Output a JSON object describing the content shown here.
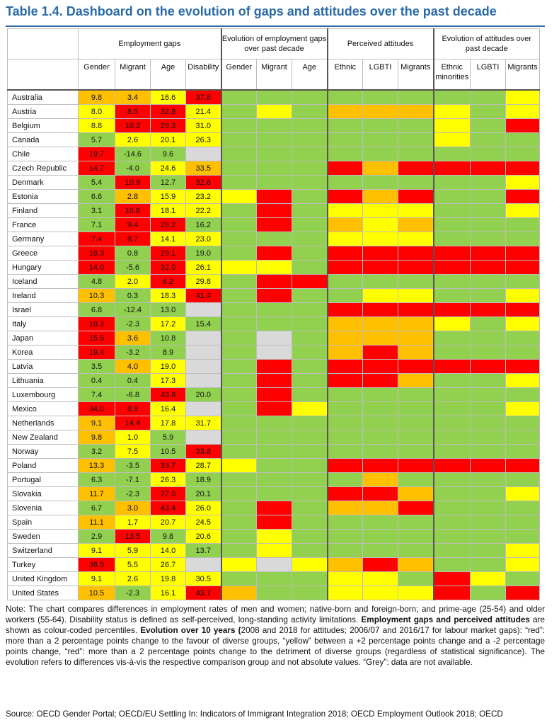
{
  "title": "Table 1.4. Dashboard on the evolution of gaps and attitudes over the past decade",
  "colors": {
    "R": "#ff0000",
    "O": "#ffc000",
    "Y": "#ffff00",
    "G": "#92d050",
    "X": "#d9d9d9",
    "W": "#ffffff",
    "title": "#2a6aa8"
  },
  "groups": [
    {
      "label": "Employment gaps",
      "span": 4
    },
    {
      "label": "Evolution of employment gaps over past decade",
      "span": 3
    },
    {
      "label": "Perceived attitudes",
      "span": 3
    },
    {
      "label": "Evolution of attitudes over past decade",
      "span": 3
    }
  ],
  "columns": [
    "Gender",
    "Migrant",
    "Age",
    "Disability",
    "Gender",
    "Migrant",
    "Age",
    "Ethnic",
    "LGBTI",
    "Migrants",
    "Ethnic minorities",
    "LGBTI",
    "Migrants"
  ],
  "rows": [
    {
      "country": "Australia",
      "values": [
        "9.8",
        "3.4",
        "16.6",
        "37.8"
      ],
      "colors": [
        "O",
        "O",
        "Y",
        "R"
      ],
      "evo": [
        "G",
        "G",
        "G"
      ],
      "att": [
        "G",
        "G",
        "G"
      ],
      "evatt": [
        "G",
        "G",
        "Y"
      ]
    },
    {
      "country": "Austria",
      "values": [
        "8.0",
        "8.5",
        "32.8",
        "21.4"
      ],
      "colors": [
        "Y",
        "R",
        "R",
        "Y"
      ],
      "evo": [
        "G",
        "Y",
        "G"
      ],
      "att": [
        "O",
        "O",
        "O"
      ],
      "evatt": [
        "Y",
        "G",
        "Y"
      ]
    },
    {
      "country": "Belgium",
      "values": [
        "8.8",
        "10.2",
        "29.3",
        "31.0"
      ],
      "colors": [
        "Y",
        "R",
        "R",
        "Y"
      ],
      "evo": [
        "G",
        "G",
        "G"
      ],
      "att": [
        "G",
        "G",
        "G"
      ],
      "evatt": [
        "Y",
        "G",
        "R"
      ]
    },
    {
      "country": "Canada",
      "values": [
        "5.7",
        "2.6",
        "20.1",
        "26.3"
      ],
      "colors": [
        "G",
        "Y",
        "Y",
        "Y"
      ],
      "evo": [
        "G",
        "G",
        "G"
      ],
      "att": [
        "G",
        "G",
        "G"
      ],
      "evatt": [
        "Y",
        "G",
        "G"
      ]
    },
    {
      "country": "Chile",
      "values": [
        "19.7",
        "-14.6",
        "9.6",
        ""
      ],
      "colors": [
        "R",
        "G",
        "G",
        "X"
      ],
      "evo": [
        "G",
        "G",
        "G"
      ],
      "att": [
        "G",
        "G",
        "G"
      ],
      "evatt": [
        "G",
        "G",
        "G"
      ]
    },
    {
      "country": "Czech Republic",
      "values": [
        "14.7",
        "-4.0",
        "24.6",
        "33.5"
      ],
      "colors": [
        "R",
        "G",
        "Y",
        "O"
      ],
      "evo": [
        "G",
        "G",
        "G"
      ],
      "att": [
        "R",
        "O",
        "R"
      ],
      "evatt": [
        "R",
        "R",
        "R"
      ]
    },
    {
      "country": "Denmark",
      "values": [
        "5.4",
        "10.9",
        "12.7",
        "32.6"
      ],
      "colors": [
        "G",
        "R",
        "G",
        "R"
      ],
      "evo": [
        "G",
        "G",
        "G"
      ],
      "att": [
        "G",
        "G",
        "G"
      ],
      "evatt": [
        "G",
        "G",
        "Y"
      ]
    },
    {
      "country": "Estonia",
      "values": [
        "6.6",
        "2.8",
        "15.9",
        "23.2"
      ],
      "colors": [
        "G",
        "O",
        "Y",
        "Y"
      ],
      "evo": [
        "Y",
        "R",
        "G"
      ],
      "att": [
        "R",
        "O",
        "R"
      ],
      "evatt": [
        "G",
        "G",
        "R"
      ]
    },
    {
      "country": "Finland",
      "values": [
        "3.1",
        "10.8",
        "18.1",
        "22.2"
      ],
      "colors": [
        "G",
        "R",
        "Y",
        "Y"
      ],
      "evo": [
        "G",
        "R",
        "G"
      ],
      "att": [
        "Y",
        "Y",
        "Y"
      ],
      "evatt": [
        "G",
        "G",
        "Y"
      ]
    },
    {
      "country": "France",
      "values": [
        "7.1",
        "9.4",
        "29.2",
        "16.2"
      ],
      "colors": [
        "G",
        "R",
        "R",
        "G"
      ],
      "evo": [
        "G",
        "R",
        "G"
      ],
      "att": [
        "O",
        "Y",
        "O"
      ],
      "evatt": [
        "G",
        "G",
        "G"
      ]
    },
    {
      "country": "Germany",
      "values": [
        "7.4",
        "8.7",
        "14.1",
        "23.0"
      ],
      "colors": [
        "R",
        "R",
        "Y",
        "Y"
      ],
      "evo": [
        "G",
        "G",
        "G"
      ],
      "att": [
        "Y",
        "Y",
        "Y"
      ],
      "evatt": [
        "G",
        "G",
        "G"
      ]
    },
    {
      "country": "Greece",
      "values": [
        "18.3",
        "0.8",
        "29.1",
        "19.0"
      ],
      "colors": [
        "R",
        "G",
        "R",
        "G"
      ],
      "evo": [
        "G",
        "R",
        "G"
      ],
      "att": [
        "R",
        "R",
        "R"
      ],
      "evatt": [
        "R",
        "R",
        "R"
      ]
    },
    {
      "country": "Hungary",
      "values": [
        "14.0",
        "-5.6",
        "32.0",
        "26.1"
      ],
      "colors": [
        "R",
        "G",
        "R",
        "Y"
      ],
      "evo": [
        "Y",
        "Y",
        "G"
      ],
      "att": [
        "R",
        "R",
        "R"
      ],
      "evatt": [
        "R",
        "R",
        "R"
      ]
    },
    {
      "country": "Iceland",
      "values": [
        "4.8",
        "2.0",
        "6.2",
        "29.8"
      ],
      "colors": [
        "G",
        "Y",
        "R",
        "Y"
      ],
      "evo": [
        "G",
        "R",
        "R"
      ],
      "att": [
        "G",
        "G",
        "G"
      ],
      "evatt": [
        "G",
        "G",
        "G"
      ]
    },
    {
      "country": "Ireland",
      "values": [
        "10.3",
        "0.3",
        "18.3",
        "41.4"
      ],
      "colors": [
        "O",
        "G",
        "Y",
        "R"
      ],
      "evo": [
        "G",
        "R",
        "G"
      ],
      "att": [
        "G",
        "Y",
        "Y"
      ],
      "evatt": [
        "G",
        "G",
        "Y"
      ]
    },
    {
      "country": "Israel",
      "values": [
        "6.8",
        "-12.4",
        "13.0",
        ""
      ],
      "colors": [
        "G",
        "G",
        "G",
        "X"
      ],
      "evo": [
        "G",
        "G",
        "G"
      ],
      "att": [
        "R",
        "R",
        "R"
      ],
      "evatt": [
        "R",
        "R",
        "R"
      ]
    },
    {
      "country": "Italy",
      "values": [
        "18.2",
        "-2.3",
        "17.2",
        "15.4"
      ],
      "colors": [
        "R",
        "G",
        "Y",
        "G"
      ],
      "evo": [
        "G",
        "G",
        "G"
      ],
      "att": [
        "O",
        "O",
        "O"
      ],
      "evatt": [
        "Y",
        "G",
        "Y"
      ]
    },
    {
      "country": "Japan",
      "values": [
        "15.5",
        "3.6",
        "10.8",
        ""
      ],
      "colors": [
        "R",
        "O",
        "G",
        "X"
      ],
      "evo": [
        "G",
        "X",
        "G"
      ],
      "att": [
        "O",
        "O",
        "O"
      ],
      "evatt": [
        "G",
        "G",
        "G"
      ]
    },
    {
      "country": "Korea",
      "values": [
        "19.4",
        "-3.2",
        "8.9",
        ""
      ],
      "colors": [
        "R",
        "G",
        "G",
        "X"
      ],
      "evo": [
        "G",
        "X",
        "G"
      ],
      "att": [
        "O",
        "R",
        "O"
      ],
      "evatt": [
        "G",
        "G",
        "G"
      ]
    },
    {
      "country": "Latvia",
      "values": [
        "3.5",
        "4.0",
        "19.0",
        ""
      ],
      "colors": [
        "G",
        "O",
        "Y",
        "X"
      ],
      "evo": [
        "G",
        "R",
        "G"
      ],
      "att": [
        "R",
        "R",
        "R"
      ],
      "evatt": [
        "R",
        "R",
        "R"
      ]
    },
    {
      "country": "Lithuania",
      "values": [
        "0.4",
        "0.4",
        "17.3",
        ""
      ],
      "colors": [
        "G",
        "G",
        "Y",
        "X"
      ],
      "evo": [
        "G",
        "R",
        "G"
      ],
      "att": [
        "R",
        "R",
        "O"
      ],
      "evatt": [
        "G",
        "G",
        "Y"
      ]
    },
    {
      "country": "Luxembourg",
      "values": [
        "7.4",
        "-6.8",
        "43.8",
        "20.0"
      ],
      "colors": [
        "G",
        "G",
        "R",
        "G"
      ],
      "evo": [
        "G",
        "R",
        "G"
      ],
      "att": [
        "G",
        "G",
        "G"
      ],
      "evatt": [
        "G",
        "G",
        "G"
      ]
    },
    {
      "country": "Mexico",
      "values": [
        "34.0",
        "8.9",
        "16.4",
        ""
      ],
      "colors": [
        "R",
        "R",
        "Y",
        "X"
      ],
      "evo": [
        "G",
        "R",
        "Y"
      ],
      "att": [
        "G",
        "G",
        "G"
      ],
      "evatt": [
        "G",
        "G",
        "Y"
      ]
    },
    {
      "country": "Netherlands",
      "values": [
        "9.1",
        "14.4",
        "17.8",
        "31.7"
      ],
      "colors": [
        "O",
        "R",
        "Y",
        "Y"
      ],
      "evo": [
        "G",
        "G",
        "G"
      ],
      "att": [
        "G",
        "G",
        "G"
      ],
      "evatt": [
        "G",
        "G",
        "G"
      ]
    },
    {
      "country": "New Zealand",
      "values": [
        "9.8",
        "1.0",
        "5.9",
        ""
      ],
      "colors": [
        "O",
        "Y",
        "G",
        "X"
      ],
      "evo": [
        "G",
        "G",
        "G"
      ],
      "att": [
        "G",
        "G",
        "G"
      ],
      "evatt": [
        "G",
        "G",
        "G"
      ]
    },
    {
      "country": "Norway",
      "values": [
        "3.2",
        "7.5",
        "10.5",
        "33.8"
      ],
      "colors": [
        "G",
        "Y",
        "G",
        "R"
      ],
      "evo": [
        "G",
        "G",
        "G"
      ],
      "att": [
        "G",
        "G",
        "G"
      ],
      "evatt": [
        "G",
        "G",
        "G"
      ]
    },
    {
      "country": "Poland",
      "values": [
        "13.3",
        "-3.5",
        "33.7",
        "28.7"
      ],
      "colors": [
        "O",
        "G",
        "R",
        "Y"
      ],
      "evo": [
        "Y",
        "G",
        "G"
      ],
      "att": [
        "R",
        "R",
        "R"
      ],
      "evatt": [
        "R",
        "R",
        "R"
      ]
    },
    {
      "country": "Portugal",
      "values": [
        "6.3",
        "-7.1",
        "26.3",
        "18.9"
      ],
      "colors": [
        "G",
        "G",
        "Y",
        "G"
      ],
      "evo": [
        "G",
        "G",
        "G"
      ],
      "att": [
        "G",
        "O",
        "G"
      ],
      "evatt": [
        "G",
        "G",
        "G"
      ]
    },
    {
      "country": "Slovakia",
      "values": [
        "11.7",
        "-2.3",
        "27.0",
        "20.1"
      ],
      "colors": [
        "O",
        "G",
        "R",
        "G"
      ],
      "evo": [
        "G",
        "G",
        "G"
      ],
      "att": [
        "R",
        "R",
        "O"
      ],
      "evatt": [
        "G",
        "G",
        "Y"
      ]
    },
    {
      "country": "Slovenia",
      "values": [
        "6.7",
        "3.0",
        "43.4",
        "26.0"
      ],
      "colors": [
        "G",
        "O",
        "R",
        "Y"
      ],
      "evo": [
        "G",
        "R",
        "G"
      ],
      "att": [
        "O",
        "O",
        "R"
      ],
      "evatt": [
        "G",
        "G",
        "G"
      ]
    },
    {
      "country": "Spain",
      "values": [
        "11.1",
        "1.7",
        "20.7",
        "24.5"
      ],
      "colors": [
        "O",
        "Y",
        "Y",
        "Y"
      ],
      "evo": [
        "G",
        "R",
        "G"
      ],
      "att": [
        "G",
        "G",
        "G"
      ],
      "evatt": [
        "G",
        "G",
        "G"
      ]
    },
    {
      "country": "Sweden",
      "values": [
        "2.9",
        "13.5",
        "9.8",
        "20.6"
      ],
      "colors": [
        "G",
        "R",
        "G",
        "Y"
      ],
      "evo": [
        "G",
        "Y",
        "G"
      ],
      "att": [
        "G",
        "G",
        "G"
      ],
      "evatt": [
        "G",
        "G",
        "G"
      ]
    },
    {
      "country": "Switzerland",
      "values": [
        "9.1",
        "5.9",
        "14.0",
        "13.7"
      ],
      "colors": [
        "Y",
        "Y",
        "Y",
        "G"
      ],
      "evo": [
        "G",
        "Y",
        "G"
      ],
      "att": [
        "G",
        "G",
        "G"
      ],
      "evatt": [
        "G",
        "G",
        "Y"
      ]
    },
    {
      "country": "Turkey",
      "values": [
        "38.5",
        "5.5",
        "26.7",
        ""
      ],
      "colors": [
        "R",
        "Y",
        "Y",
        "X"
      ],
      "evo": [
        "Y",
        "X",
        "Y"
      ],
      "att": [
        "O",
        "R",
        "O"
      ],
      "evatt": [
        "G",
        "G",
        "Y"
      ]
    },
    {
      "country": "United Kingdom",
      "values": [
        "9.1",
        "2.6",
        "19.8",
        "30.5"
      ],
      "colors": [
        "Y",
        "Y",
        "Y",
        "Y"
      ],
      "evo": [
        "G",
        "G",
        "G"
      ],
      "att": [
        "Y",
        "Y",
        "G"
      ],
      "evatt": [
        "R",
        "Y",
        "G"
      ]
    },
    {
      "country": "United States",
      "values": [
        "10.5",
        "-2.3",
        "16.1",
        "43.7"
      ],
      "colors": [
        "O",
        "G",
        "Y",
        "R"
      ],
      "evo": [
        "O",
        "G",
        "G"
      ],
      "att": [
        "Y",
        "Y",
        "Y"
      ],
      "evatt": [
        "R",
        "G",
        "R"
      ]
    }
  ],
  "note": {
    "p1": "Note: The chart compares differences in employment rates of men and women; native-born and foreign-born; and prime-age (25-54) and older workers (55-64). Disability status is defined as self-perceived, long-standing activity limitations. ",
    "b1": "Employment gaps and perceived attitudes",
    "p2": " are shown as colour-coded percentiles. ",
    "b2": "Evolution over 10 years (",
    "p3": "2008 and 2018 for attitudes; 2006/07 and 2016/17 for labour market gaps): “red”: more than a 2 percentage points change to the favour of diverse groups, “yellow” between a +2 percentage points change and a -2 percentage points change, “red”: more than a 2 percentage points change to the detriment of diverse groups (regardless of statistical significance). The evolution refers to differences vis-à-vis the respective comparison group and not absolute values. “Grey”: data are not available."
  },
  "source": "Source: OECD Gender Portal; OECD/EU Settling In: Indicators of Immigrant Integration 2018; OECD Employment Outlook 2018; OECD"
}
